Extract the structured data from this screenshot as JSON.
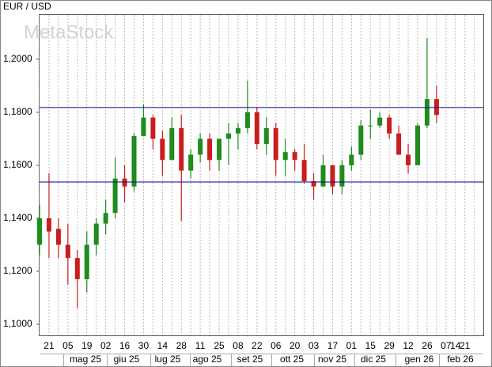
{
  "chart_data": {
    "type": "candlestick",
    "title": "EUR / USD",
    "watermark": "MetaStock",
    "categories": [
      null,
      "21",
      null,
      "05",
      null,
      "19",
      null,
      "02",
      null,
      "16",
      null,
      "30",
      null,
      "14",
      null,
      "28",
      null,
      "11",
      null,
      "25",
      null,
      "08",
      null,
      "22",
      null,
      "06",
      null,
      "20",
      null,
      "03",
      null,
      "17",
      null,
      "01",
      null,
      "15",
      null,
      "29",
      null,
      "12",
      null,
      "26",
      null,
      "07",
      "14",
      "21",
      null
    ],
    "month_labels": [
      "mag 25",
      "giu 25",
      "lug 25",
      "ago 25",
      "set 25",
      "ott 25",
      "nov 25",
      "dic 25",
      "gen 26",
      "feb 26"
    ],
    "up_color": "#1e8c1e",
    "down_color": "#c81e1e",
    "open": [
      1.13,
      1.14,
      1.136,
      1.13,
      1.125,
      1.117,
      1.13,
      1.138,
      1.142,
      1.155,
      1.152,
      1.171,
      1.178,
      1.17,
      1.162,
      1.174,
      1.158,
      1.164,
      1.17,
      1.162,
      1.17,
      1.172,
      1.174,
      1.18,
      1.168,
      1.174,
      1.162,
      1.165,
      1.162,
      1.154,
      1.152,
      1.16,
      1.152,
      1.16,
      1.164,
      1.175,
      1.175,
      1.178,
      1.172,
      1.164,
      1.16,
      1.175,
      1.185,
      null,
      null,
      null,
      null
    ],
    "high": [
      1.145,
      1.157,
      1.14,
      1.138,
      1.128,
      1.135,
      1.14,
      1.147,
      1.163,
      1.16,
      1.172,
      1.183,
      1.179,
      1.173,
      1.178,
      1.179,
      1.166,
      1.172,
      1.172,
      1.17,
      1.176,
      1.176,
      1.192,
      1.182,
      1.178,
      1.176,
      1.17,
      1.166,
      1.168,
      1.157,
      1.164,
      1.16,
      1.162,
      1.167,
      1.177,
      1.181,
      1.18,
      1.179,
      1.175,
      1.168,
      1.176,
      1.208,
      1.19,
      null,
      null,
      null,
      null
    ],
    "low": [
      1.126,
      1.125,
      1.125,
      1.115,
      1.106,
      1.112,
      1.126,
      1.134,
      1.14,
      1.146,
      1.15,
      1.172,
      1.166,
      1.156,
      1.162,
      1.139,
      1.155,
      1.161,
      1.158,
      1.158,
      1.16,
      1.166,
      1.172,
      1.166,
      1.164,
      1.156,
      1.156,
      1.158,
      1.153,
      1.147,
      1.152,
      1.149,
      1.149,
      1.158,
      1.162,
      1.17,
      1.174,
      1.17,
      1.164,
      1.157,
      1.16,
      1.174,
      1.176,
      null,
      null,
      null,
      null
    ],
    "close": [
      1.14,
      1.135,
      1.13,
      1.125,
      1.117,
      1.13,
      1.138,
      1.142,
      1.155,
      1.152,
      1.171,
      1.178,
      1.17,
      1.162,
      1.174,
      1.158,
      1.164,
      1.17,
      1.162,
      1.17,
      1.172,
      1.174,
      1.18,
      1.168,
      1.174,
      1.162,
      1.165,
      1.162,
      1.154,
      1.152,
      1.16,
      1.152,
      1.16,
      1.164,
      1.175,
      1.175,
      1.178,
      1.172,
      1.164,
      1.16,
      1.175,
      1.185,
      1.179,
      null,
      null,
      null,
      null
    ],
    "hlines": [
      1.1818,
      1.1537
    ],
    "hline_color": "#1a1a8c",
    "ylim": [
      1.0958,
      1.217
    ],
    "yticks": [
      {
        "value": 1.1,
        "label": "1,1000"
      },
      {
        "value": 1.12,
        "label": "1,1200"
      },
      {
        "value": 1.14,
        "label": "1,1400"
      },
      {
        "value": 1.16,
        "label": "1,1600"
      },
      {
        "value": 1.18,
        "label": "1,1800"
      },
      {
        "value": 1.2,
        "label": "1,2000"
      }
    ],
    "grid": true
  }
}
